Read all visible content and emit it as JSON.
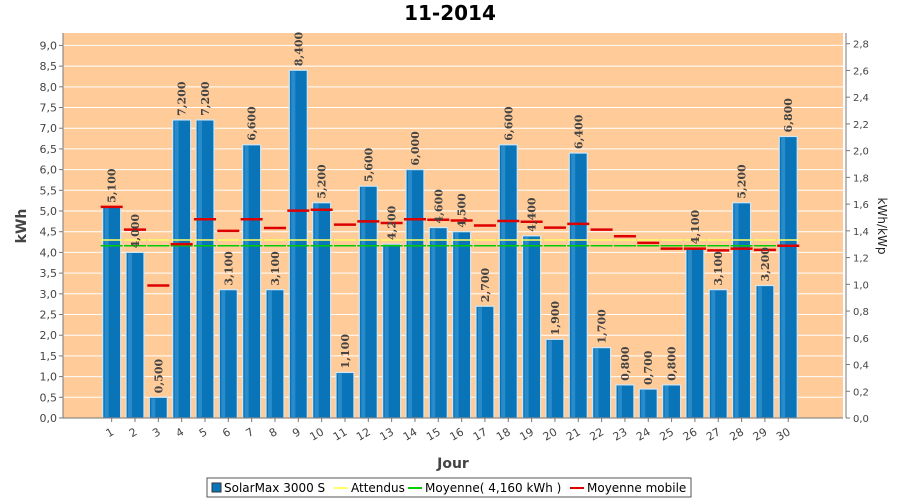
{
  "chart_data": {
    "type": "bar",
    "title": "11-2014",
    "xlabel": "Jour",
    "ylabel": "kWh",
    "y2label": "kWh/kWp",
    "ylim": [
      0,
      9.3
    ],
    "y2lim": [
      0,
      2.88
    ],
    "yticks": [
      "0,0",
      "0,5",
      "1,0",
      "1,5",
      "2,0",
      "2,5",
      "3,0",
      "3,5",
      "4,0",
      "4,5",
      "5,0",
      "5,5",
      "6,0",
      "6,5",
      "7,0",
      "7,5",
      "8,0",
      "8,5",
      "9,0"
    ],
    "y2ticks": [
      "0,0",
      "0,2",
      "0,4",
      "0,6",
      "0,8",
      "1,0",
      "1,2",
      "1,4",
      "1,6",
      "1,8",
      "2,0",
      "2,2",
      "2,4",
      "2,6",
      "2,8"
    ],
    "categories": [
      "1",
      "2",
      "3",
      "4",
      "5",
      "6",
      "7",
      "8",
      "9",
      "10",
      "11",
      "12",
      "13",
      "14",
      "15",
      "16",
      "17",
      "18",
      "19",
      "20",
      "21",
      "22",
      "23",
      "24",
      "25",
      "26",
      "27",
      "28",
      "29",
      "30"
    ],
    "series": [
      {
        "name": "SolarMax 3000 S",
        "values": [
          5.1,
          4.0,
          0.5,
          7.2,
          7.2,
          3.1,
          6.6,
          3.1,
          8.4,
          5.2,
          1.1,
          5.6,
          4.2,
          6.0,
          4.6,
          4.5,
          2.7,
          6.6,
          4.4,
          1.9,
          6.4,
          1.7,
          0.8,
          0.7,
          0.8,
          4.1,
          3.1,
          5.2,
          3.2,
          6.8
        ],
        "labels": [
          "5,100",
          "4,000",
          "0,500",
          "7,200",
          "7,200",
          "3,100",
          "6,600",
          "3,100",
          "8,400",
          "5,200",
          "1,100",
          "5,600",
          "4,200",
          "6,000",
          "4,600",
          "4,500",
          "2,700",
          "6,600",
          "4,400",
          "1,900",
          "6,400",
          "1,700",
          "0,800",
          "0,700",
          "0,800",
          "4,100",
          "3,100",
          "5,200",
          "3,200",
          "6,800"
        ]
      },
      {
        "name": "Attendus",
        "values": [
          4.3,
          4.3,
          4.3,
          4.3,
          4.3,
          4.3,
          4.3,
          4.3,
          4.3,
          4.3,
          4.3,
          4.3,
          4.3,
          4.3,
          4.3,
          4.3,
          4.3,
          4.3,
          4.3,
          4.3,
          4.3,
          4.3,
          4.3,
          4.3,
          4.3,
          4.3,
          4.3,
          4.3,
          4.3,
          4.3
        ]
      },
      {
        "name": "Moyenne( 4,160 kWh )",
        "values": [
          4.16,
          4.16,
          4.16,
          4.16,
          4.16,
          4.16,
          4.16,
          4.16,
          4.16,
          4.16,
          4.16,
          4.16,
          4.16,
          4.16,
          4.16,
          4.16,
          4.16,
          4.16,
          4.16,
          4.16,
          4.16,
          4.16,
          4.16,
          4.16,
          4.16,
          4.16,
          4.16,
          4.16,
          4.16,
          4.16
        ]
      },
      {
        "name": "Moyenne mobile",
        "values": [
          5.1,
          4.55,
          3.2,
          4.2,
          4.8,
          4.52,
          4.8,
          4.59,
          5.01,
          5.03,
          4.67,
          4.75,
          4.71,
          4.8,
          4.79,
          4.77,
          4.65,
          4.76,
          4.74,
          4.6,
          4.69,
          4.55,
          4.39,
          4.23,
          4.09,
          4.09,
          4.05,
          4.09,
          4.06,
          4.16
        ]
      }
    ],
    "colors": {
      "plot_bg": "#ffcc99",
      "bar": "#0a74b8",
      "expected": "#ffff66",
      "average": "#00cc00",
      "moving_average": "#dd0000"
    },
    "grid": true,
    "legend": "bottom"
  }
}
